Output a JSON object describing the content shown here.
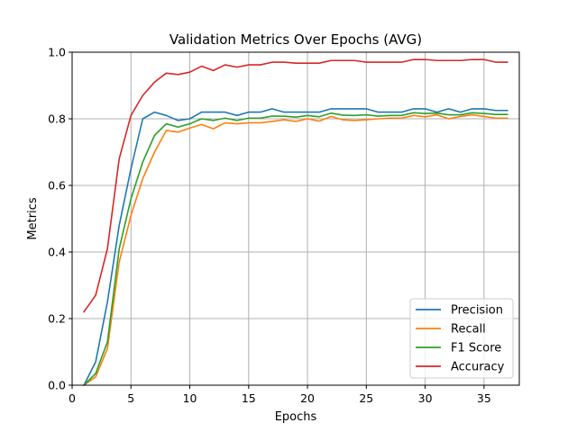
{
  "chart_data": {
    "type": "line",
    "title": "Validation Metrics Over Epochs (AVG)",
    "xlabel": "Epochs",
    "ylabel": "Metrics",
    "xlim": [
      0,
      38
    ],
    "ylim": [
      0,
      1.0
    ],
    "grid": true,
    "legend_position": "bottom-right",
    "x_ticks": [
      0,
      5,
      10,
      15,
      20,
      25,
      30,
      35
    ],
    "x_tick_labels": [
      "0",
      "5",
      "10",
      "15",
      "20",
      "25",
      "30",
      "35"
    ],
    "y_ticks": [
      0.0,
      0.2,
      0.4,
      0.6,
      0.8,
      1.0
    ],
    "y_tick_labels": [
      "0.0",
      "0.2",
      "0.4",
      "0.6",
      "0.8",
      "1.0"
    ],
    "x": [
      1,
      2,
      3,
      4,
      5,
      6,
      7,
      8,
      9,
      10,
      11,
      12,
      13,
      14,
      15,
      16,
      17,
      18,
      19,
      20,
      21,
      22,
      23,
      24,
      25,
      26,
      27,
      28,
      29,
      30,
      31,
      32,
      33,
      34,
      35,
      36,
      37
    ],
    "series": [
      {
        "name": "Precision",
        "color": "#1f77b4",
        "values": [
          0.0,
          0.07,
          0.25,
          0.48,
          0.65,
          0.8,
          0.82,
          0.81,
          0.795,
          0.8,
          0.82,
          0.82,
          0.82,
          0.81,
          0.82,
          0.82,
          0.83,
          0.82,
          0.82,
          0.82,
          0.82,
          0.83,
          0.83,
          0.83,
          0.83,
          0.82,
          0.82,
          0.82,
          0.83,
          0.83,
          0.82,
          0.83,
          0.82,
          0.83,
          0.83,
          0.825,
          0.825
        ]
      },
      {
        "name": "Recall",
        "color": "#ff7f0e",
        "values": [
          0.0,
          0.025,
          0.11,
          0.37,
          0.51,
          0.62,
          0.7,
          0.765,
          0.76,
          0.772,
          0.783,
          0.77,
          0.788,
          0.785,
          0.788,
          0.788,
          0.792,
          0.797,
          0.792,
          0.8,
          0.793,
          0.807,
          0.797,
          0.795,
          0.797,
          0.8,
          0.802,
          0.802,
          0.81,
          0.806,
          0.812,
          0.8,
          0.807,
          0.812,
          0.807,
          0.802,
          0.802
        ]
      },
      {
        "name": "F1 Score",
        "color": "#2ca02c",
        "values": [
          0.0,
          0.035,
          0.13,
          0.41,
          0.56,
          0.67,
          0.75,
          0.785,
          0.775,
          0.785,
          0.8,
          0.795,
          0.802,
          0.795,
          0.802,
          0.802,
          0.808,
          0.808,
          0.805,
          0.81,
          0.806,
          0.817,
          0.811,
          0.81,
          0.812,
          0.808,
          0.81,
          0.81,
          0.818,
          0.816,
          0.817,
          0.812,
          0.812,
          0.818,
          0.816,
          0.813,
          0.813
        ]
      },
      {
        "name": "Accuracy",
        "color": "#d62728",
        "values": [
          0.22,
          0.27,
          0.41,
          0.68,
          0.81,
          0.87,
          0.91,
          0.937,
          0.933,
          0.94,
          0.958,
          0.945,
          0.962,
          0.955,
          0.962,
          0.962,
          0.97,
          0.97,
          0.967,
          0.967,
          0.967,
          0.975,
          0.975,
          0.975,
          0.97,
          0.97,
          0.97,
          0.97,
          0.978,
          0.978,
          0.975,
          0.975,
          0.975,
          0.978,
          0.978,
          0.97,
          0.97
        ]
      }
    ]
  }
}
